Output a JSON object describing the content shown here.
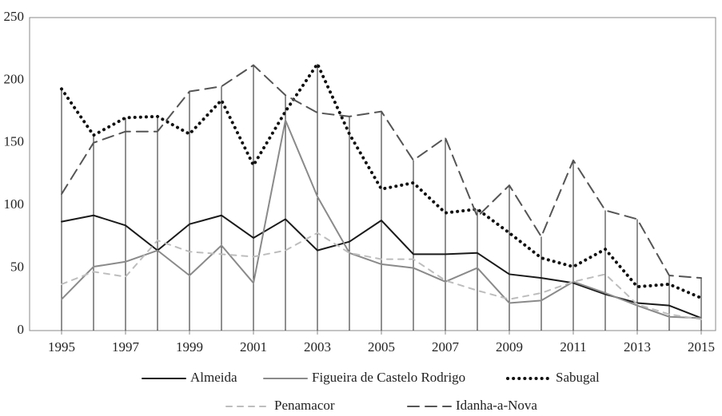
{
  "chart_data": {
    "type": "line",
    "x": [
      1995,
      1996,
      1997,
      1998,
      1999,
      2000,
      2001,
      2002,
      2003,
      2004,
      2005,
      2006,
      2007,
      2008,
      2009,
      2010,
      2011,
      2012,
      2013,
      2014,
      2015
    ],
    "xlim": [
      1995,
      2015
    ],
    "xticks": [
      1995,
      1997,
      1999,
      2001,
      2003,
      2005,
      2007,
      2009,
      2011,
      2013,
      2015
    ],
    "ylim": [
      0,
      250
    ],
    "yticks": [
      0,
      50,
      100,
      150,
      200,
      250
    ],
    "drop_lines": true,
    "legend": "bottom",
    "series": [
      {
        "name": "Almeida",
        "color": "#1a1a1a",
        "line_style": "solid",
        "values": [
          87,
          92,
          84,
          64,
          85,
          92,
          74,
          89,
          64,
          71,
          88,
          61,
          61,
          62,
          45,
          42,
          38,
          29,
          22,
          20,
          10
        ]
      },
      {
        "name": "Figueira de Castelo Rodrigo",
        "color": "#8a8a8a",
        "line_style": "solid",
        "values": [
          25,
          51,
          55,
          64,
          44,
          68,
          38,
          168,
          107,
          62,
          53,
          50,
          39,
          50,
          22,
          24,
          39,
          30,
          20,
          11,
          10
        ]
      },
      {
        "name": "Sabugal",
        "color": "#111111",
        "line_style": "dotted",
        "values": [
          193,
          156,
          170,
          171,
          157,
          184,
          132,
          175,
          213,
          157,
          113,
          118,
          94,
          97,
          78,
          58,
          51,
          65,
          35,
          37,
          26
        ]
      },
      {
        "name": "Penamacor",
        "color": "#bdbdbd",
        "line_style": "dashed",
        "values": [
          37,
          47,
          43,
          72,
          63,
          61,
          59,
          64,
          78,
          62,
          57,
          57,
          40,
          32,
          25,
          30,
          39,
          45,
          21,
          13,
          9
        ]
      },
      {
        "name": "Idanha-a-Nova",
        "color": "#555555",
        "line_style": "longdash",
        "values": [
          109,
          150,
          159,
          159,
          191,
          195,
          212,
          188,
          174,
          171,
          175,
          136,
          154,
          91,
          116,
          75,
          136,
          96,
          89,
          44,
          42
        ]
      }
    ]
  }
}
